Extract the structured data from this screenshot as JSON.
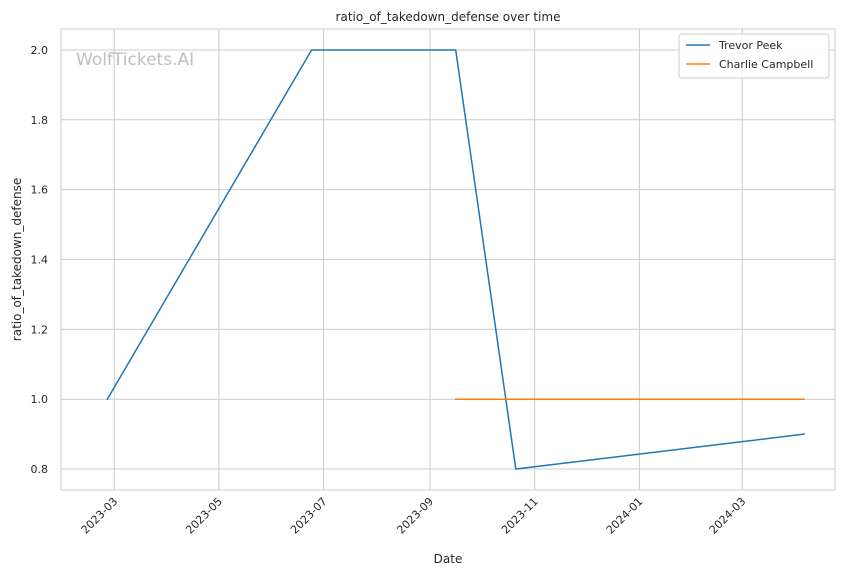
{
  "watermark": "WolfTickets.AI",
  "chart_data": {
    "type": "line",
    "title": "ratio_of_takedown_defense over time",
    "xlabel": "Date",
    "ylabel": "ratio_of_takedown_defense",
    "xlim": [
      "2023-01-29",
      "2024-04-24"
    ],
    "ylim": [
      0.74,
      2.06
    ],
    "x_ticks": [
      "2023-03",
      "2023-05",
      "2023-07",
      "2023-09",
      "2023-11",
      "2024-01",
      "2024-03"
    ],
    "x_tick_dates": [
      "2023-03-01",
      "2023-05-01",
      "2023-07-01",
      "2023-09-01",
      "2023-11-01",
      "2024-01-01",
      "2024-03-01"
    ],
    "y_ticks": [
      "0.8",
      "1.0",
      "1.2",
      "1.4",
      "1.6",
      "1.8",
      "2.0"
    ],
    "grid": true,
    "legend_position": "top-right",
    "series": [
      {
        "name": "Trevor Peek",
        "color": "#1f77b4",
        "x": [
          "2023-02-25",
          "2023-06-24",
          "2023-09-16",
          "2023-10-21",
          "2024-04-06"
        ],
        "y": [
          1.0,
          2.0,
          2.0,
          0.8,
          0.9
        ]
      },
      {
        "name": "Charlie Campbell",
        "color": "#ff7f0e",
        "x": [
          "2023-09-16",
          "2024-04-06"
        ],
        "y": [
          1.0,
          1.0
        ]
      }
    ]
  }
}
